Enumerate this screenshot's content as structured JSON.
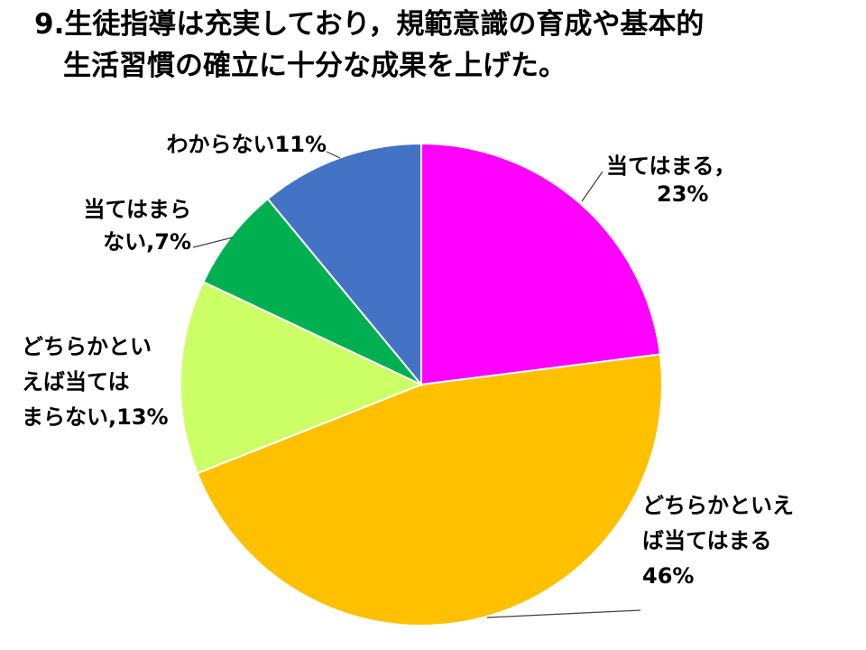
{
  "title": {
    "line1": "9.生徒指導は充実しており，規範意識の育成や基本的",
    "line2": "生活習慣の確立に十分な成果を上げた。"
  },
  "chart_data": {
    "type": "pie",
    "title": "9.生徒指導は充実しており，規範意識の育成や基本的生活習慣の確立に十分な成果を上げた。",
    "start_angle_deg": 0,
    "direction": "clockwise",
    "slices": [
      {
        "name": "当てはまる",
        "value": 23,
        "color": "#FF00FF",
        "label_lines": [
          "当てはまる，",
          "23%"
        ]
      },
      {
        "name": "どちらかといえば当てはまる",
        "value": 46,
        "color": "#FFC000",
        "label_lines": [
          "どちらかといえ",
          "ば当てはまる",
          "46%"
        ]
      },
      {
        "name": "どちらかといえば当てはまらない",
        "value": 13,
        "color": "#CCFF66",
        "label_lines": [
          "どちらかとい",
          "えば当ては",
          "まらない,13%"
        ]
      },
      {
        "name": "当てはまらない",
        "value": 7,
        "color": "#00B050",
        "label_lines": [
          "当てはまら",
          "ない,7%"
        ]
      },
      {
        "name": "わからない",
        "value": 11,
        "color": "#4472C4",
        "label_lines": [
          "わからない11%"
        ]
      }
    ]
  }
}
